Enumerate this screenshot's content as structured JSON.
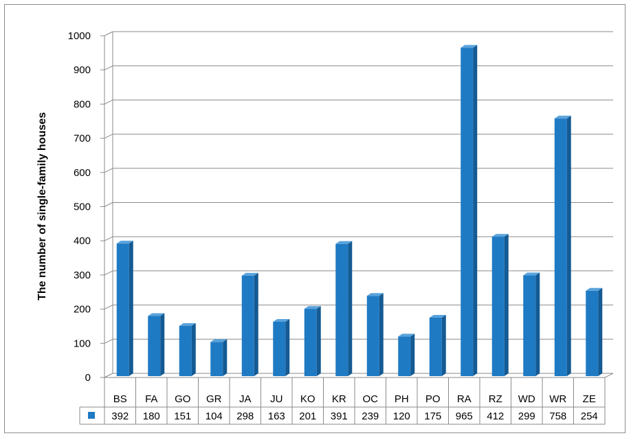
{
  "chart_data": {
    "type": "bar",
    "title": "",
    "xlabel": "",
    "ylabel": "The number of single-family houses",
    "ylim": [
      0,
      1000
    ],
    "yticks": [
      0,
      100,
      200,
      300,
      400,
      500,
      600,
      700,
      800,
      900,
      1000
    ],
    "grid": true,
    "legend": "data-table",
    "bar_color": "#1f7ac4",
    "bar_top_color": "#5aa3dc",
    "bar_side_color": "#145a93",
    "categories": [
      "BS",
      "FA",
      "GO",
      "GR",
      "JA",
      "JU",
      "KO",
      "KR",
      "OC",
      "PH",
      "PO",
      "RA",
      "RZ",
      "WD",
      "WR",
      "ZE"
    ],
    "series": [
      {
        "values": [
          392,
          180,
          151,
          104,
          298,
          163,
          201,
          391,
          239,
          120,
          175,
          965,
          412,
          299,
          758,
          254
        ]
      }
    ]
  }
}
